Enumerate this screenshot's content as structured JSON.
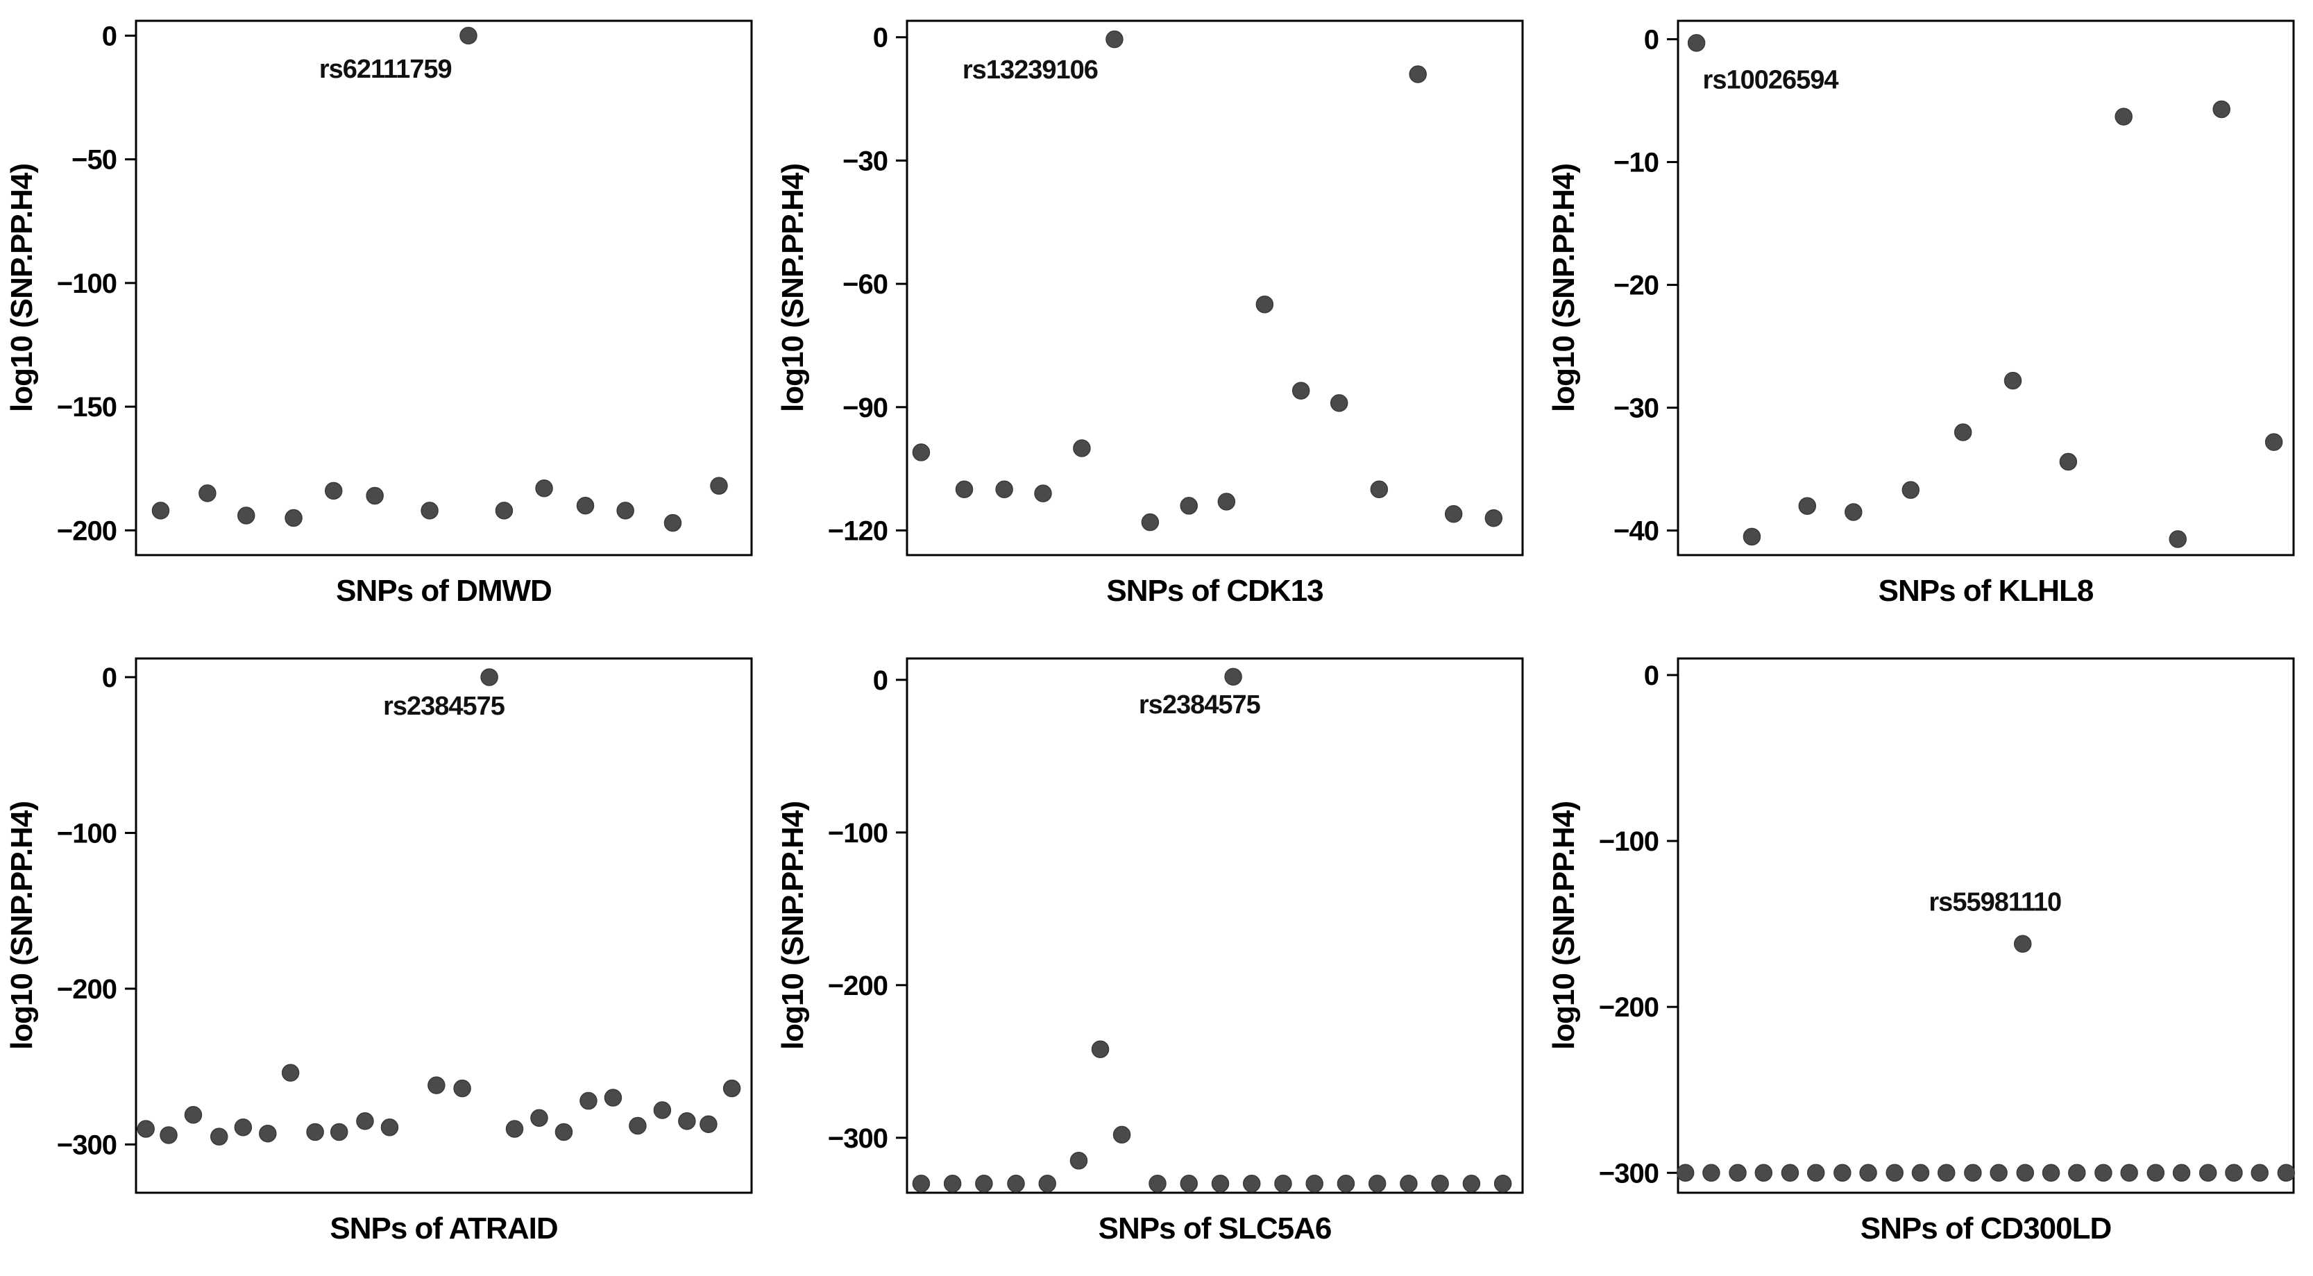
{
  "figure": {
    "background": "#ffffff",
    "axis_color": "#000000",
    "point_color": "#4a4a4a",
    "text_color": "#000000"
  },
  "chart_data": [
    {
      "type": "scatter",
      "xlabel": "SNPs of DMWD",
      "ylabel": "log10 (SNP.PP.H4)",
      "ylim": [
        -210,
        6
      ],
      "yticks": [
        0,
        -50,
        -100,
        -150,
        -200
      ],
      "ytick_labels": [
        "0",
        "−50",
        "−100",
        "−150",
        "−200"
      ],
      "grid": false,
      "annotation": {
        "text": "rs62111759",
        "x": 0.405,
        "y": -17
      },
      "points": [
        {
          "x": 0.04,
          "y": -192
        },
        {
          "x": 0.116,
          "y": -185
        },
        {
          "x": 0.179,
          "y": -194
        },
        {
          "x": 0.256,
          "y": -195
        },
        {
          "x": 0.321,
          "y": -184
        },
        {
          "x": 0.388,
          "y": -186
        },
        {
          "x": 0.477,
          "y": -192
        },
        {
          "x": 0.54,
          "y": 0
        },
        {
          "x": 0.598,
          "y": -192
        },
        {
          "x": 0.663,
          "y": -183
        },
        {
          "x": 0.73,
          "y": -190
        },
        {
          "x": 0.795,
          "y": -192
        },
        {
          "x": 0.872,
          "y": -197
        },
        {
          "x": 0.947,
          "y": -182
        }
      ]
    },
    {
      "type": "scatter",
      "xlabel": "SNPs of CDK13",
      "ylabel": "log10 (SNP.PP.H4)",
      "ylim": [
        -126,
        4
      ],
      "yticks": [
        0,
        -30,
        -60,
        -90,
        -120
      ],
      "ytick_labels": [
        "0",
        "−30",
        "−60",
        "−90",
        "−120"
      ],
      "grid": false,
      "annotation": {
        "text": "rs13239106",
        "x": 0.2,
        "y": -10
      },
      "points": [
        {
          "x": 0.023,
          "y": -101
        },
        {
          "x": 0.093,
          "y": -110
        },
        {
          "x": 0.158,
          "y": -110
        },
        {
          "x": 0.221,
          "y": -111
        },
        {
          "x": 0.284,
          "y": -100
        },
        {
          "x": 0.337,
          "y": -0.5
        },
        {
          "x": 0.395,
          "y": -118
        },
        {
          "x": 0.458,
          "y": -114
        },
        {
          "x": 0.519,
          "y": -113
        },
        {
          "x": 0.581,
          "y": -65
        },
        {
          "x": 0.64,
          "y": -86
        },
        {
          "x": 0.702,
          "y": -89
        },
        {
          "x": 0.767,
          "y": -110
        },
        {
          "x": 0.83,
          "y": -9
        },
        {
          "x": 0.888,
          "y": -116
        },
        {
          "x": 0.953,
          "y": -117
        }
      ]
    },
    {
      "type": "scatter",
      "xlabel": "SNPs of KLHL8",
      "ylabel": "log10 (SNP.PP.H4)",
      "ylim": [
        -42,
        1.5
      ],
      "yticks": [
        0,
        -10,
        -20,
        -30,
        -40
      ],
      "ytick_labels": [
        "0",
        "−10",
        "−20",
        "−30",
        "−40"
      ],
      "grid": false,
      "annotation": {
        "text": "rs10026594",
        "x": 0.15,
        "y": -4
      },
      "points": [
        {
          "x": 0.03,
          "y": -0.3
        },
        {
          "x": 0.12,
          "y": -40.5
        },
        {
          "x": 0.21,
          "y": -38
        },
        {
          "x": 0.285,
          "y": -38.5
        },
        {
          "x": 0.378,
          "y": -36.7
        },
        {
          "x": 0.463,
          "y": -32
        },
        {
          "x": 0.544,
          "y": -27.8
        },
        {
          "x": 0.634,
          "y": -34.4
        },
        {
          "x": 0.724,
          "y": -6.3
        },
        {
          "x": 0.812,
          "y": -40.7
        },
        {
          "x": 0.883,
          "y": -5.7
        },
        {
          "x": 0.968,
          "y": -32.8
        }
      ]
    },
    {
      "type": "scatter",
      "xlabel": "SNPs of ATRAID",
      "ylabel": "log10 (SNP.PP.H4)",
      "ylim": [
        -331,
        12
      ],
      "yticks": [
        0,
        -100,
        -200,
        -300
      ],
      "ytick_labels": [
        "0",
        "−100",
        "−200",
        "−300"
      ],
      "grid": false,
      "annotation": {
        "text": "rs2384575",
        "x": 0.5,
        "y": -24
      },
      "points": [
        {
          "x": 0.016,
          "y": -290
        },
        {
          "x": 0.053,
          "y": -294
        },
        {
          "x": 0.093,
          "y": -281
        },
        {
          "x": 0.135,
          "y": -295
        },
        {
          "x": 0.174,
          "y": -289
        },
        {
          "x": 0.214,
          "y": -293
        },
        {
          "x": 0.251,
          "y": -254
        },
        {
          "x": 0.291,
          "y": -292
        },
        {
          "x": 0.33,
          "y": -292
        },
        {
          "x": 0.372,
          "y": -285
        },
        {
          "x": 0.412,
          "y": -289
        },
        {
          "x": 0.488,
          "y": -262
        },
        {
          "x": 0.53,
          "y": -264
        },
        {
          "x": 0.574,
          "y": 0
        },
        {
          "x": 0.615,
          "y": -290
        },
        {
          "x": 0.655,
          "y": -283
        },
        {
          "x": 0.695,
          "y": -292
        },
        {
          "x": 0.735,
          "y": -272
        },
        {
          "x": 0.775,
          "y": -270
        },
        {
          "x": 0.815,
          "y": -288
        },
        {
          "x": 0.855,
          "y": -278
        },
        {
          "x": 0.895,
          "y": -285
        },
        {
          "x": 0.93,
          "y": -287
        },
        {
          "x": 0.968,
          "y": -264
        }
      ]
    },
    {
      "type": "scatter",
      "xlabel": "SNPs of SLC5A6",
      "ylabel": "log10 (SNP.PP.H4)",
      "ylim": [
        -336,
        14
      ],
      "yticks": [
        0,
        -100,
        -200,
        -300
      ],
      "ytick_labels": [
        "0",
        "−100",
        "−200",
        "−300"
      ],
      "grid": false,
      "annotation": {
        "text": "rs2384575",
        "x": 0.475,
        "y": -22
      },
      "points": [
        {
          "x": 0.023,
          "y": -330
        },
        {
          "x": 0.074,
          "y": -330
        },
        {
          "x": 0.125,
          "y": -330
        },
        {
          "x": 0.177,
          "y": -330
        },
        {
          "x": 0.228,
          "y": -330
        },
        {
          "x": 0.279,
          "y": -315
        },
        {
          "x": 0.314,
          "y": -242
        },
        {
          "x": 0.349,
          "y": -298
        },
        {
          "x": 0.407,
          "y": -330
        },
        {
          "x": 0.458,
          "y": -330
        },
        {
          "x": 0.509,
          "y": -330
        },
        {
          "x": 0.53,
          "y": 2
        },
        {
          "x": 0.56,
          "y": -330
        },
        {
          "x": 0.611,
          "y": -330
        },
        {
          "x": 0.662,
          "y": -330
        },
        {
          "x": 0.713,
          "y": -330
        },
        {
          "x": 0.764,
          "y": -330
        },
        {
          "x": 0.815,
          "y": -330
        },
        {
          "x": 0.866,
          "y": -330
        },
        {
          "x": 0.917,
          "y": -330
        },
        {
          "x": 0.968,
          "y": -330
        }
      ]
    },
    {
      "type": "scatter",
      "xlabel": "SNPs of CD300LD",
      "ylabel": "log10 (SNP.PP.H4)",
      "ylim": [
        -312,
        10
      ],
      "yticks": [
        0,
        -100,
        -200,
        -300
      ],
      "ytick_labels": [
        "0",
        "−100",
        "−200",
        "−300"
      ],
      "grid": false,
      "annotation": {
        "text": "rs55981110",
        "x": 0.515,
        "y": -142
      },
      "points": [
        {
          "x": 0.56,
          "y": -162
        },
        {
          "x": 0.012,
          "y": -300
        },
        {
          "x": 0.054,
          "y": -300
        },
        {
          "x": 0.097,
          "y": -300
        },
        {
          "x": 0.139,
          "y": -300
        },
        {
          "x": 0.182,
          "y": -300
        },
        {
          "x": 0.224,
          "y": -300
        },
        {
          "x": 0.267,
          "y": -300
        },
        {
          "x": 0.309,
          "y": -300
        },
        {
          "x": 0.352,
          "y": -300
        },
        {
          "x": 0.394,
          "y": -300
        },
        {
          "x": 0.436,
          "y": -300
        },
        {
          "x": 0.479,
          "y": -300
        },
        {
          "x": 0.521,
          "y": -300
        },
        {
          "x": 0.564,
          "y": -300
        },
        {
          "x": 0.606,
          "y": -300
        },
        {
          "x": 0.648,
          "y": -300
        },
        {
          "x": 0.691,
          "y": -300
        },
        {
          "x": 0.733,
          "y": -300
        },
        {
          "x": 0.776,
          "y": -300
        },
        {
          "x": 0.818,
          "y": -300
        },
        {
          "x": 0.861,
          "y": -300
        },
        {
          "x": 0.903,
          "y": -300
        },
        {
          "x": 0.945,
          "y": -300
        },
        {
          "x": 0.988,
          "y": -300
        }
      ]
    }
  ]
}
